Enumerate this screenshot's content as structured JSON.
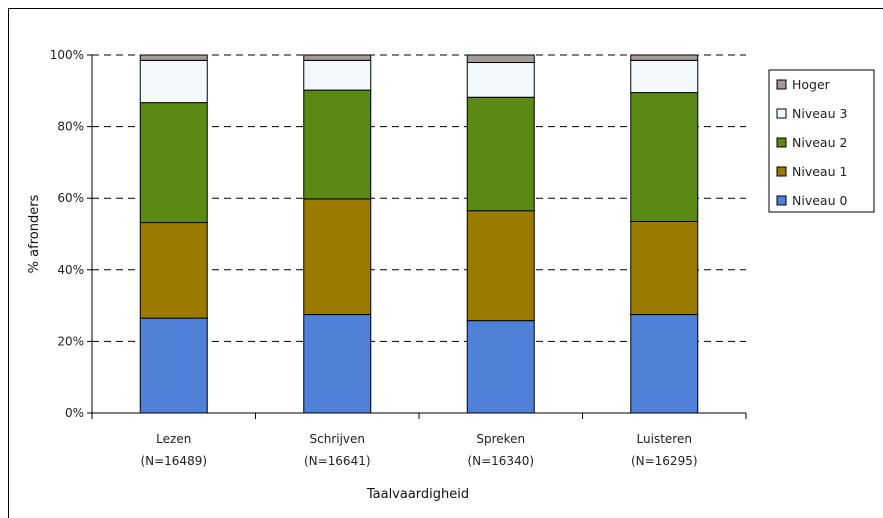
{
  "chart_data": {
    "type": "bar",
    "stacked": true,
    "title": "",
    "xlabel": "Taalvaardigheid",
    "ylabel": "% afronders",
    "ylim": [
      0,
      100
    ],
    "yticks": [
      "0%",
      "20%",
      "40%",
      "60%",
      "80%",
      "100%"
    ],
    "grid": "horizontal-dashed",
    "legend_position": "right",
    "categories": [
      {
        "name": "Lezen",
        "n": "(N=16489)"
      },
      {
        "name": "Schrijven",
        "n": "(N=16641)"
      },
      {
        "name": "Spreken",
        "n": "(N=16340)"
      },
      {
        "name": "Luisteren",
        "n": "(N=16295)"
      }
    ],
    "series": [
      {
        "name": "Niveau 0",
        "color": "#4f81d9",
        "values": [
          26.5,
          27.5,
          25.8,
          27.5
        ]
      },
      {
        "name": "Niveau 1",
        "color": "#9b7a00",
        "values": [
          26.7,
          32.3,
          30.7,
          26.0
        ]
      },
      {
        "name": "Niveau 2",
        "color": "#5a8a14",
        "values": [
          33.5,
          30.4,
          31.7,
          36.0
        ]
      },
      {
        "name": "Niveau 3",
        "color": "#f3f8fb",
        "values": [
          11.8,
          8.3,
          9.7,
          9.0
        ]
      },
      {
        "name": "Hoger",
        "color": "#a49a96",
        "values": [
          1.5,
          1.5,
          2.1,
          1.5
        ]
      }
    ]
  }
}
